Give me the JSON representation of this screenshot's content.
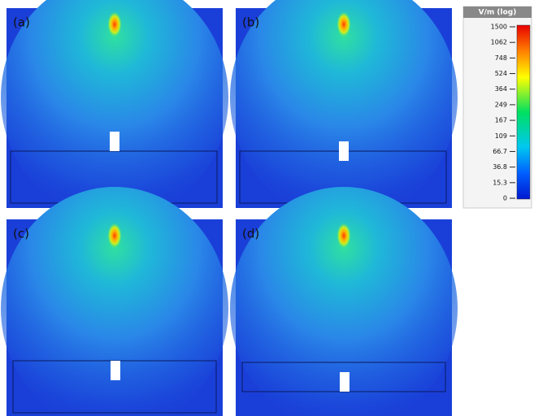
{
  "panels": [
    {
      "label": "(a)"
    },
    {
      "label": "(b)"
    },
    {
      "label": "(c)"
    },
    {
      "label": "(d)"
    }
  ],
  "colorbar": {
    "title": "V/m (log)",
    "ticks": [
      "1500",
      "1062",
      "748",
      "524",
      "364",
      "249",
      "167",
      "109",
      "66.7",
      "36.8",
      "15.3",
      "0"
    ]
  }
}
